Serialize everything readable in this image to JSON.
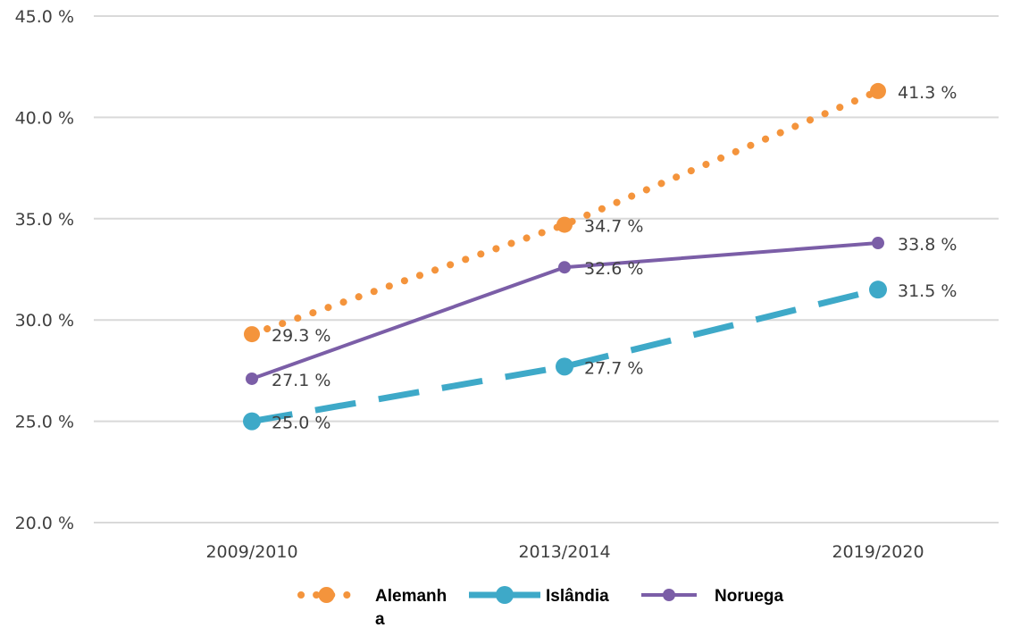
{
  "chart_data": {
    "type": "line",
    "title": "",
    "xlabel": "",
    "ylabel": "",
    "categories": [
      "2009/2010",
      "2013/2014",
      "2019/2020"
    ],
    "ylim": [
      20,
      45
    ],
    "yticks": [
      "20.0 %",
      "25.0 %",
      "30.0 %",
      "35.0 %",
      "40.0 %",
      "45.0 %"
    ],
    "grid": true,
    "legend_position": "bottom",
    "series": [
      {
        "name": "Alemanha",
        "values": [
          29.3,
          34.7,
          41.3
        ],
        "labels": [
          "29.3 %",
          "34.7 %",
          "41.3 %"
        ],
        "color": "#f4943c",
        "style": "dotted"
      },
      {
        "name": "Islândia",
        "values": [
          25.0,
          27.7,
          31.5
        ],
        "labels": [
          "25.0 %",
          "27.7 %",
          "31.5 %"
        ],
        "color": "#3ea9c8",
        "style": "dashed"
      },
      {
        "name": "Noruega",
        "values": [
          27.1,
          32.6,
          33.8
        ],
        "labels": [
          "27.1 %",
          "32.6 %",
          "33.8 %"
        ],
        "color": "#7b5ea7",
        "style": "solid"
      }
    ]
  }
}
